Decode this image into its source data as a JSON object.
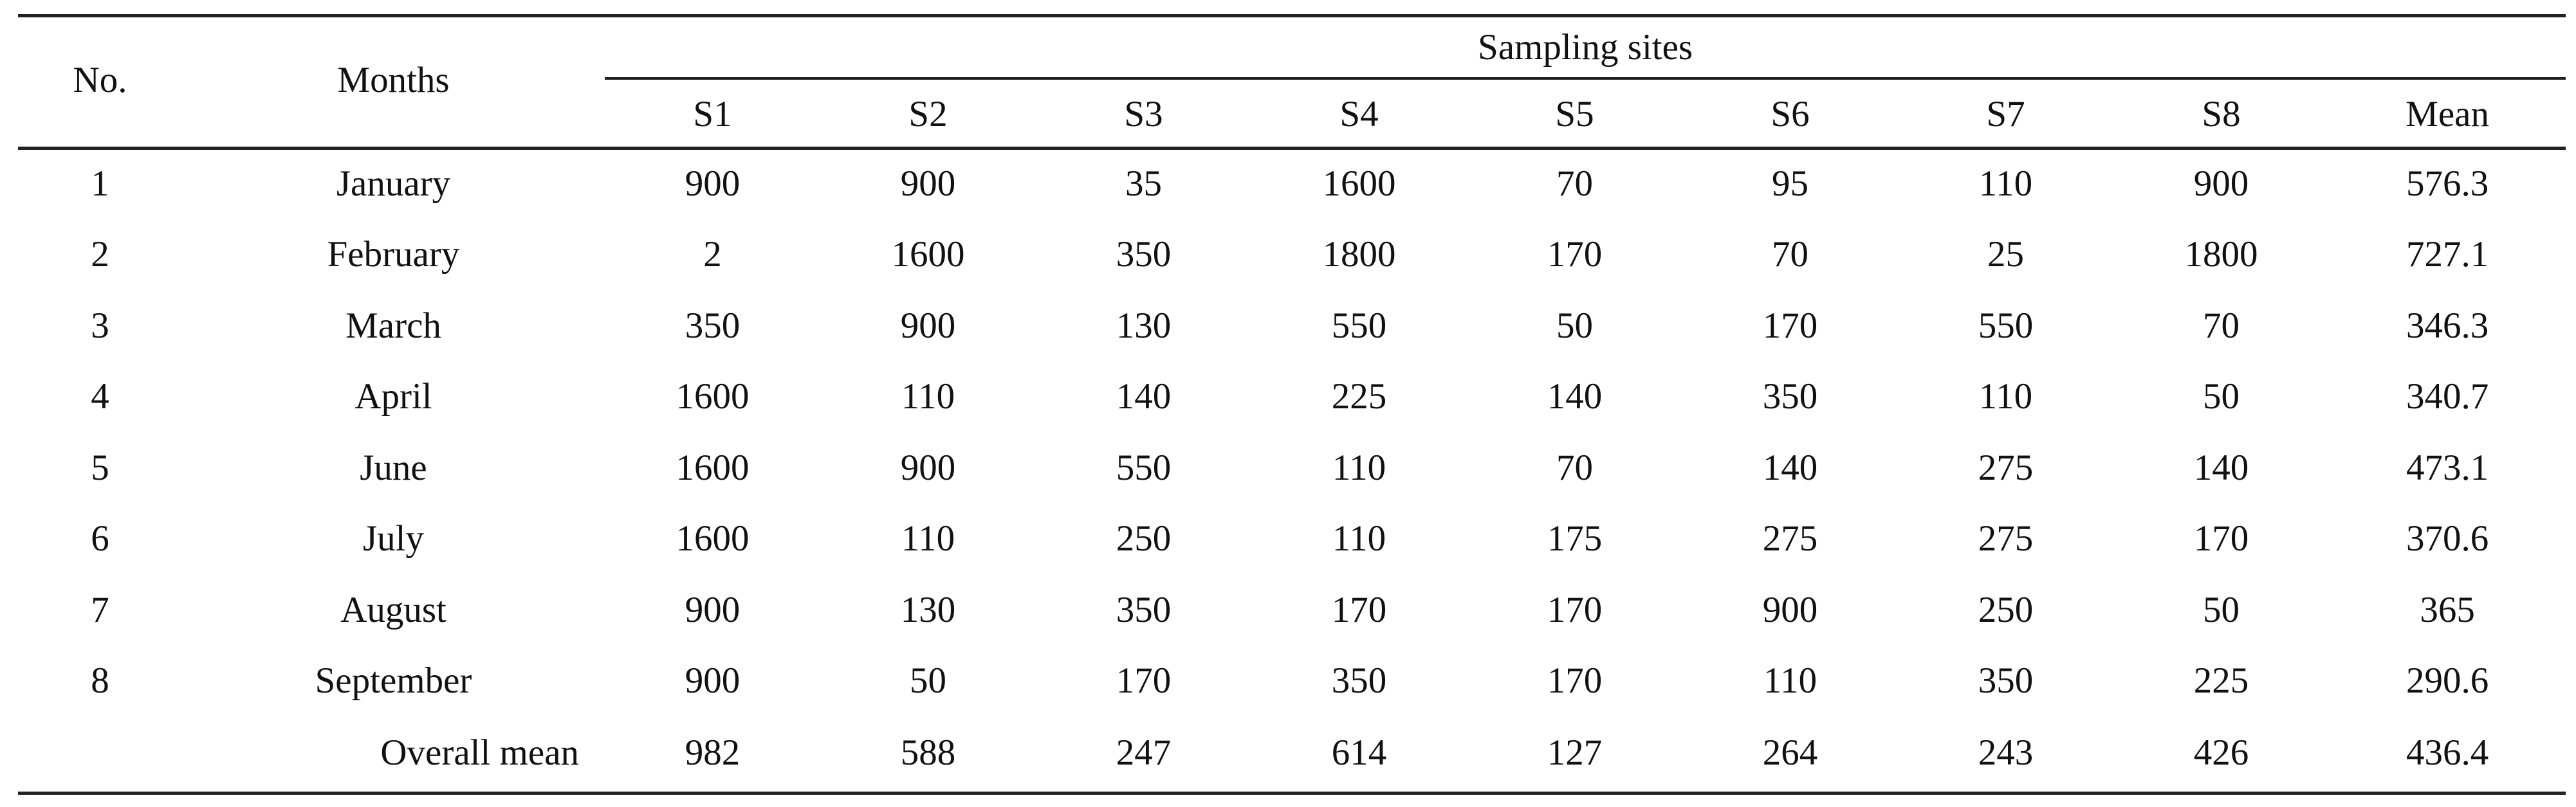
{
  "table": {
    "headers": {
      "no": "No.",
      "months": "Months",
      "group": "Sampling sites",
      "sites": [
        "S1",
        "S2",
        "S3",
        "S4",
        "S5",
        "S6",
        "S7",
        "S8"
      ],
      "mean": "Mean"
    },
    "rows": [
      {
        "no": "1",
        "month": "January",
        "values": [
          "900",
          "900",
          "35",
          "1600",
          "70",
          "95",
          "110",
          "900"
        ],
        "mean": "576.3"
      },
      {
        "no": "2",
        "month": "February",
        "values": [
          "2",
          "1600",
          "350",
          "1800",
          "170",
          "70",
          "25",
          "1800"
        ],
        "mean": "727.1"
      },
      {
        "no": "3",
        "month": "March",
        "values": [
          "350",
          "900",
          "130",
          "550",
          "50",
          "170",
          "550",
          "70"
        ],
        "mean": "346.3"
      },
      {
        "no": "4",
        "month": "April",
        "values": [
          "1600",
          "110",
          "140",
          "225",
          "140",
          "350",
          "110",
          "50"
        ],
        "mean": "340.7"
      },
      {
        "no": "5",
        "month": "June",
        "values": [
          "1600",
          "900",
          "550",
          "110",
          "70",
          "140",
          "275",
          "140"
        ],
        "mean": "473.1"
      },
      {
        "no": "6",
        "month": "July",
        "values": [
          "1600",
          "110",
          "250",
          "110",
          "175",
          "275",
          "275",
          "170"
        ],
        "mean": "370.6"
      },
      {
        "no": "7",
        "month": "August",
        "values": [
          "900",
          "130",
          "350",
          "170",
          "170",
          "900",
          "250",
          "50"
        ],
        "mean": "365"
      },
      {
        "no": "8",
        "month": "September",
        "values": [
          "900",
          "50",
          "170",
          "350",
          "170",
          "110",
          "350",
          "225"
        ],
        "mean": "290.6"
      }
    ],
    "overall": {
      "label": "Overall mean",
      "values": [
        "982",
        "588",
        "247",
        "614",
        "127",
        "264",
        "243",
        "426"
      ],
      "mean": "436.4"
    }
  }
}
